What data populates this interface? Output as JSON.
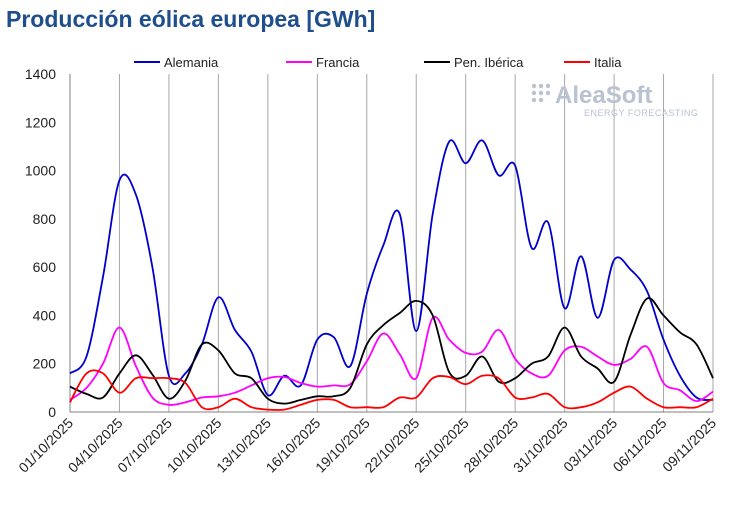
{
  "chart_data": {
    "type": "line",
    "title": "Producción eólica europea [GWh]",
    "xlabel": "",
    "ylabel": "",
    "ylim": [
      0,
      1400
    ],
    "yticks": [
      0,
      200,
      400,
      600,
      800,
      1000,
      1200,
      1400
    ],
    "x": [
      "01/10/2025",
      "02/10/2025",
      "03/10/2025",
      "04/10/2025",
      "05/10/2025",
      "06/10/2025",
      "07/10/2025",
      "08/10/2025",
      "09/10/2025",
      "10/10/2025",
      "11/10/2025",
      "12/10/2025",
      "13/10/2025",
      "14/10/2025",
      "15/10/2025",
      "16/10/2025",
      "17/10/2025",
      "18/10/2025",
      "19/10/2025",
      "20/10/2025",
      "21/10/2025",
      "22/10/2025",
      "23/10/2025",
      "24/10/2025",
      "25/10/2025",
      "26/10/2025",
      "27/10/2025",
      "28/10/2025",
      "29/10/2025",
      "30/10/2025",
      "31/10/2025",
      "01/11/2025",
      "02/11/2025",
      "03/11/2025",
      "04/11/2025",
      "05/11/2025",
      "06/11/2025",
      "07/11/2025",
      "08/11/2025",
      "09/11/2025"
    ],
    "xtick_labels": [
      "01/10/2025",
      "04/10/2025",
      "07/10/2025",
      "10/10/2025",
      "13/10/2025",
      "16/10/2025",
      "19/10/2025",
      "22/10/2025",
      "25/10/2025",
      "28/10/2025",
      "31/10/2025",
      "03/11/2025",
      "06/11/2025",
      "09/11/2025"
    ],
    "legend_position": "top",
    "grid": "vertical",
    "series": [
      {
        "name": "Alemania",
        "color": "#0000cc",
        "values": [
          160,
          230,
          560,
          960,
          900,
          600,
          150,
          160,
          280,
          475,
          340,
          250,
          70,
          150,
          110,
          300,
          310,
          190,
          490,
          690,
          820,
          335,
          820,
          1120,
          1030,
          1125,
          980,
          1020,
          680,
          785,
          430,
          645,
          390,
          630,
          590,
          500,
          300,
          150,
          60,
          50
        ]
      },
      {
        "name": "Francia",
        "color": "#ff00ff",
        "values": [
          50,
          100,
          200,
          350,
          190,
          60,
          30,
          40,
          60,
          65,
          80,
          110,
          140,
          145,
          120,
          105,
          110,
          115,
          210,
          325,
          240,
          140,
          390,
          300,
          245,
          250,
          340,
          220,
          160,
          150,
          255,
          270,
          230,
          195,
          220,
          270,
          120,
          90,
          45,
          85
        ]
      },
      {
        "name": "Pen. Ibérica",
        "color": "#000000",
        "values": [
          105,
          75,
          60,
          160,
          235,
          155,
          55,
          130,
          280,
          255,
          160,
          140,
          55,
          35,
          50,
          65,
          65,
          100,
          280,
          360,
          410,
          460,
          400,
          165,
          150,
          230,
          125,
          140,
          200,
          230,
          350,
          230,
          180,
          125,
          320,
          470,
          400,
          330,
          280,
          140
        ]
      },
      {
        "name": "Italia",
        "color": "#ff0000",
        "values": [
          40,
          160,
          160,
          80,
          140,
          140,
          140,
          120,
          20,
          20,
          55,
          20,
          10,
          10,
          30,
          50,
          50,
          20,
          20,
          20,
          60,
          60,
          140,
          145,
          115,
          150,
          140,
          60,
          60,
          75,
          20,
          20,
          40,
          80,
          105,
          55,
          20,
          20,
          20,
          55
        ]
      }
    ]
  },
  "watermark": {
    "brand": "AleaSoft",
    "tagline": "ENERGY FORECASTING"
  }
}
